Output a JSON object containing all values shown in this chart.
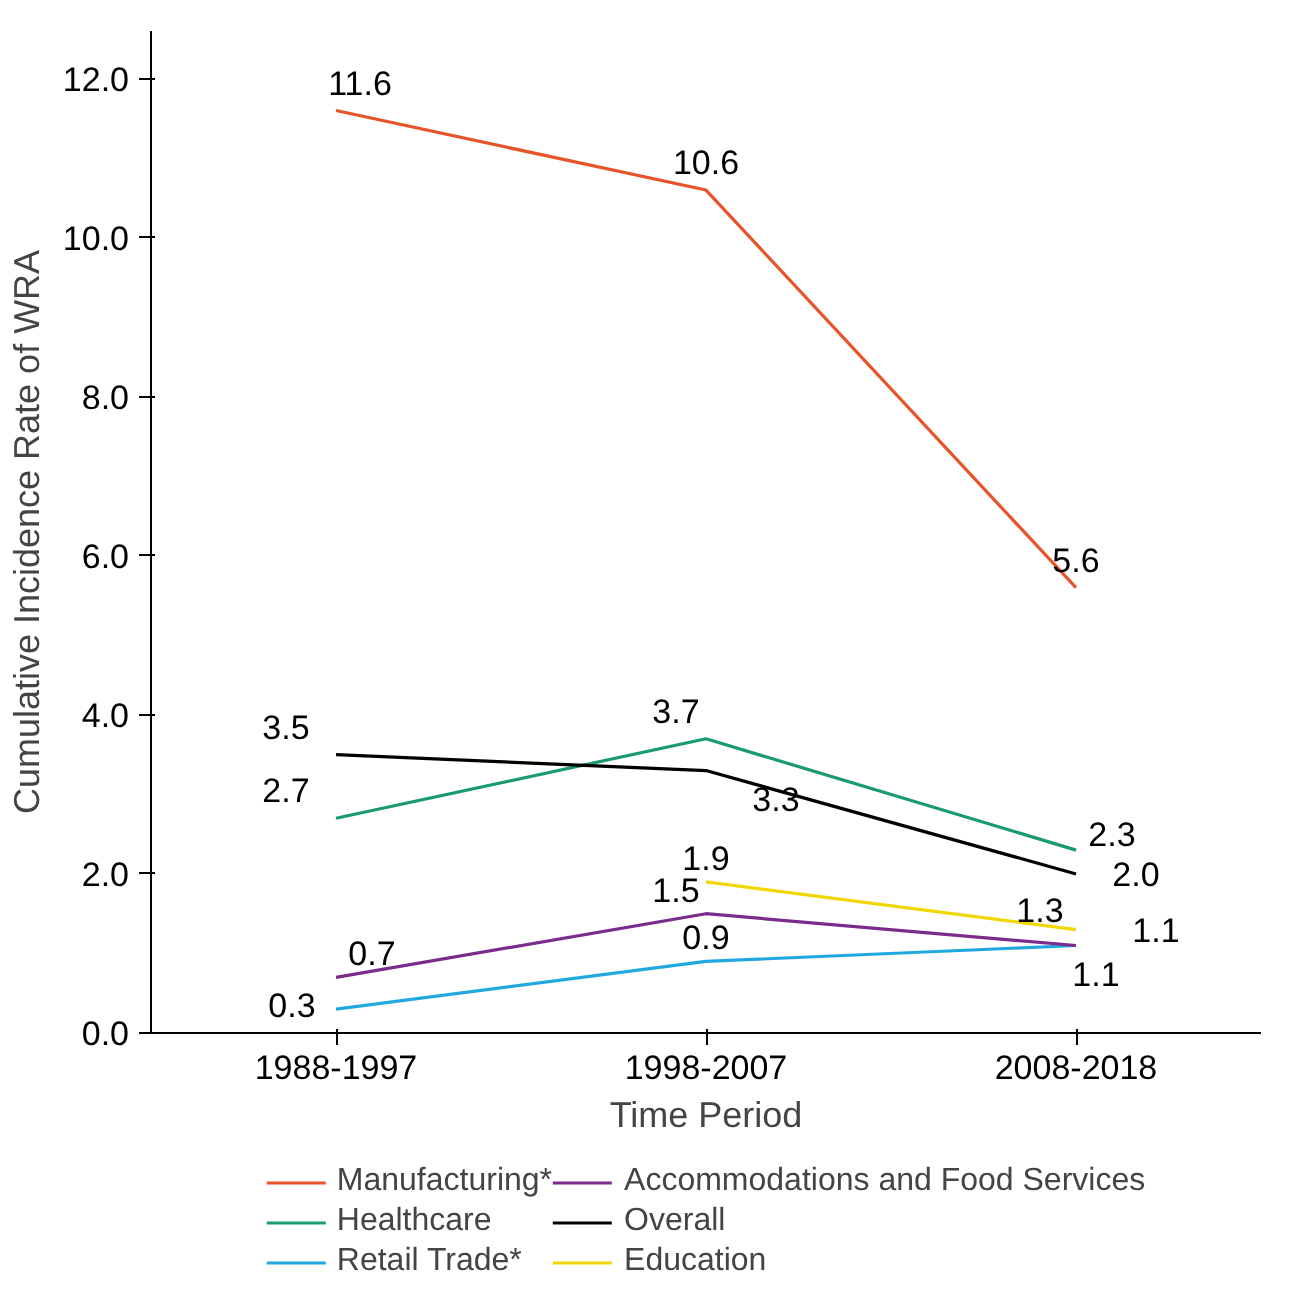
{
  "chart_data": {
    "type": "line",
    "xlabel": "Time Period",
    "ylabel": "Cumulative Incidence Rate of WRA",
    "categories": [
      "1988-1997",
      "1998-2007",
      "2008-2018"
    ],
    "series": [
      {
        "name": "Manufacturing*",
        "color": "#e8542a",
        "values": [
          11.6,
          10.6,
          5.6
        ],
        "value_labels": [
          "11.6",
          "10.6",
          "5.6"
        ]
      },
      {
        "name": "Healthcare",
        "color": "#1a9a72",
        "values": [
          2.7,
          3.7,
          2.3
        ],
        "value_labels": [
          "2.7",
          "3.7",
          "2.3"
        ]
      },
      {
        "name": "Retail Trade*",
        "color": "#22a8e0",
        "values": [
          0.3,
          0.9,
          1.1
        ],
        "value_labels": [
          "0.3",
          "0.9",
          "1.1"
        ]
      },
      {
        "name": "Accommodations and Food Services",
        "color": "#7a2c8c",
        "values": [
          0.7,
          1.5,
          1.1
        ],
        "value_labels": [
          "0.7",
          "1.5",
          "1.1"
        ]
      },
      {
        "name": "Overall",
        "color": "#000000",
        "values": [
          3.5,
          3.3,
          2.0
        ],
        "value_labels": [
          "3.5",
          "3.3",
          "2.0"
        ]
      },
      {
        "name": "Education",
        "color": "#f2d600",
        "values": [
          null,
          1.9,
          1.3
        ],
        "value_labels": [
          null,
          "1.9",
          "1.3"
        ]
      }
    ],
    "ylim": [
      0,
      12.6
    ],
    "yticks": [
      {
        "value": 0,
        "label": "0.0"
      },
      {
        "value": 2,
        "label": "2.0"
      },
      {
        "value": 4,
        "label": "4.0"
      },
      {
        "value": 6,
        "label": "6.0"
      },
      {
        "value": 8,
        "label": "8.0"
      },
      {
        "value": 10,
        "label": "10.0"
      },
      {
        "value": 12,
        "label": "12.0"
      }
    ],
    "legend": "bottom",
    "marker": "none",
    "line_style": "solid"
  }
}
